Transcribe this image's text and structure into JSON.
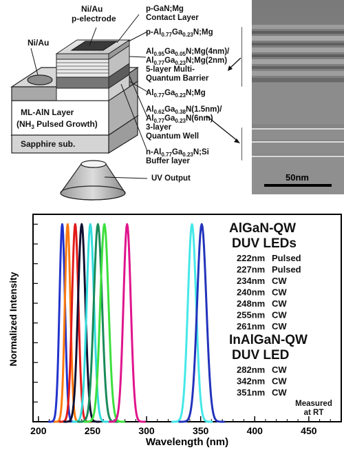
{
  "diagram": {
    "labels": {
      "ni_au_p_electrode_l1": "Ni/Au",
      "ni_au_p_electrode_l2": "p-electrode",
      "ni_au_n": "Ni/Au",
      "p_gan_l1": "p-GaN;Mg",
      "p_gan_l2": "Contact Layer",
      "p_algan_prefix": "p-Al",
      "p_algan_x": "0.77",
      "p_algan_mid": "Ga",
      "p_algan_y": "0.23",
      "p_algan_suffix": "N;Mg",
      "barrier_l1_a": "Al",
      "barrier_l1_x": "0.95",
      "barrier_l1_b": "Ga",
      "barrier_l1_y": "0.05",
      "barrier_l1_c": "N;Mg(4nm)/",
      "barrier_l2_a": "Al",
      "barrier_l2_x": "0.77",
      "barrier_l2_b": "Ga",
      "barrier_l2_y": "0.23",
      "barrier_l2_c": "N;Mg(2nm)",
      "barrier_l3": "5-layer  Multi-",
      "barrier_l4": "Quantum Barrier",
      "algan_mg_a": "Al",
      "algan_mg_x": "0.77",
      "algan_mg_b": "Ga",
      "algan_mg_y": "0.23",
      "algan_mg_c": "N;Mg",
      "qw_l1_a": "Al",
      "qw_l1_x": "0.62",
      "qw_l1_b": "Ga",
      "qw_l1_y": "0.38",
      "qw_l1_c": "N(1.5nm)/",
      "qw_l2_a": "Al",
      "qw_l2_x": "0.77",
      "qw_l2_b": "Ga",
      "qw_l2_y": "0.23",
      "qw_l2_c": "N(6nm)",
      "qw_l3": "3-layer",
      "qw_l4": "Quantum Well",
      "buffer_a": "n-Al",
      "buffer_x": "0.77",
      "buffer_b": "Ga",
      "buffer_y": "0.23",
      "buffer_c": "N;Si",
      "buffer_l2": "Buffer layer",
      "ml_aln_l1": "ML-AlN Layer",
      "ml_aln_l2_a": "(NH",
      "ml_aln_l2_sub": "3",
      "ml_aln_l2_b": " Pulsed Growth)",
      "sapphire": "Sapphire sub.",
      "uv_output": "UV Output"
    }
  },
  "tem": {
    "scale_label": "50nm"
  },
  "chart_data": {
    "type": "line",
    "xlabel": "Wavelength  (nm)",
    "ylabel": "Normalized Intensity",
    "xlim": [
      195,
      480
    ],
    "ylim": [
      0,
      1.05
    ],
    "xticks": [
      200,
      250,
      300,
      350,
      400,
      450
    ],
    "grid": false,
    "series": [
      {
        "peak": 222,
        "mode": "Pulsed",
        "color": "#2233cc",
        "fwhm": 6
      },
      {
        "peak": 227,
        "mode": "Pulsed",
        "color": "#ff7a10",
        "fwhm": 6
      },
      {
        "peak": 234,
        "mode": "CW",
        "color": "#e21a1a",
        "fwhm": 7
      },
      {
        "peak": 240,
        "mode": "CW",
        "color": "#111133",
        "fwhm": 8
      },
      {
        "peak": 248,
        "mode": "CW",
        "color": "#33dddd",
        "fwhm": 8
      },
      {
        "peak": 255,
        "mode": "CW",
        "color": "#1a8a5a",
        "fwhm": 9
      },
      {
        "peak": 261,
        "mode": "CW",
        "color": "#3de03d",
        "fwhm": 9
      },
      {
        "peak": 282,
        "mode": "CW",
        "color": "#e0148c",
        "fwhm": 8
      },
      {
        "peak": 342,
        "mode": "CW",
        "color": "#44e8e8",
        "fwhm": 9
      },
      {
        "peak": 351,
        "mode": "CW",
        "color": "#2233bb",
        "fwhm": 10
      }
    ],
    "legend": {
      "group1_title_l1": "AlGaN-QW",
      "group1_title_l2": "DUV LEDs",
      "group1_entries": [
        {
          "wl": "222nm",
          "mode": "Pulsed"
        },
        {
          "wl": "227nm",
          "mode": "Pulsed"
        },
        {
          "wl": "234nm",
          "mode": "CW"
        },
        {
          "wl": "240nm",
          "mode": "CW"
        },
        {
          "wl": "248nm",
          "mode": "CW"
        },
        {
          "wl": "255nm",
          "mode": "CW"
        },
        {
          "wl": "261nm",
          "mode": "CW"
        }
      ],
      "group2_title_l1": "InAlGaN-QW",
      "group2_title_l2": "DUV LED",
      "group2_entries": [
        {
          "wl": "282nm",
          "mode": "CW"
        },
        {
          "wl": "342nm",
          "mode": "CW"
        },
        {
          "wl": "351nm",
          "mode": "CW"
        }
      ],
      "note_l1": "Measured",
      "note_l2": "at RT"
    }
  }
}
